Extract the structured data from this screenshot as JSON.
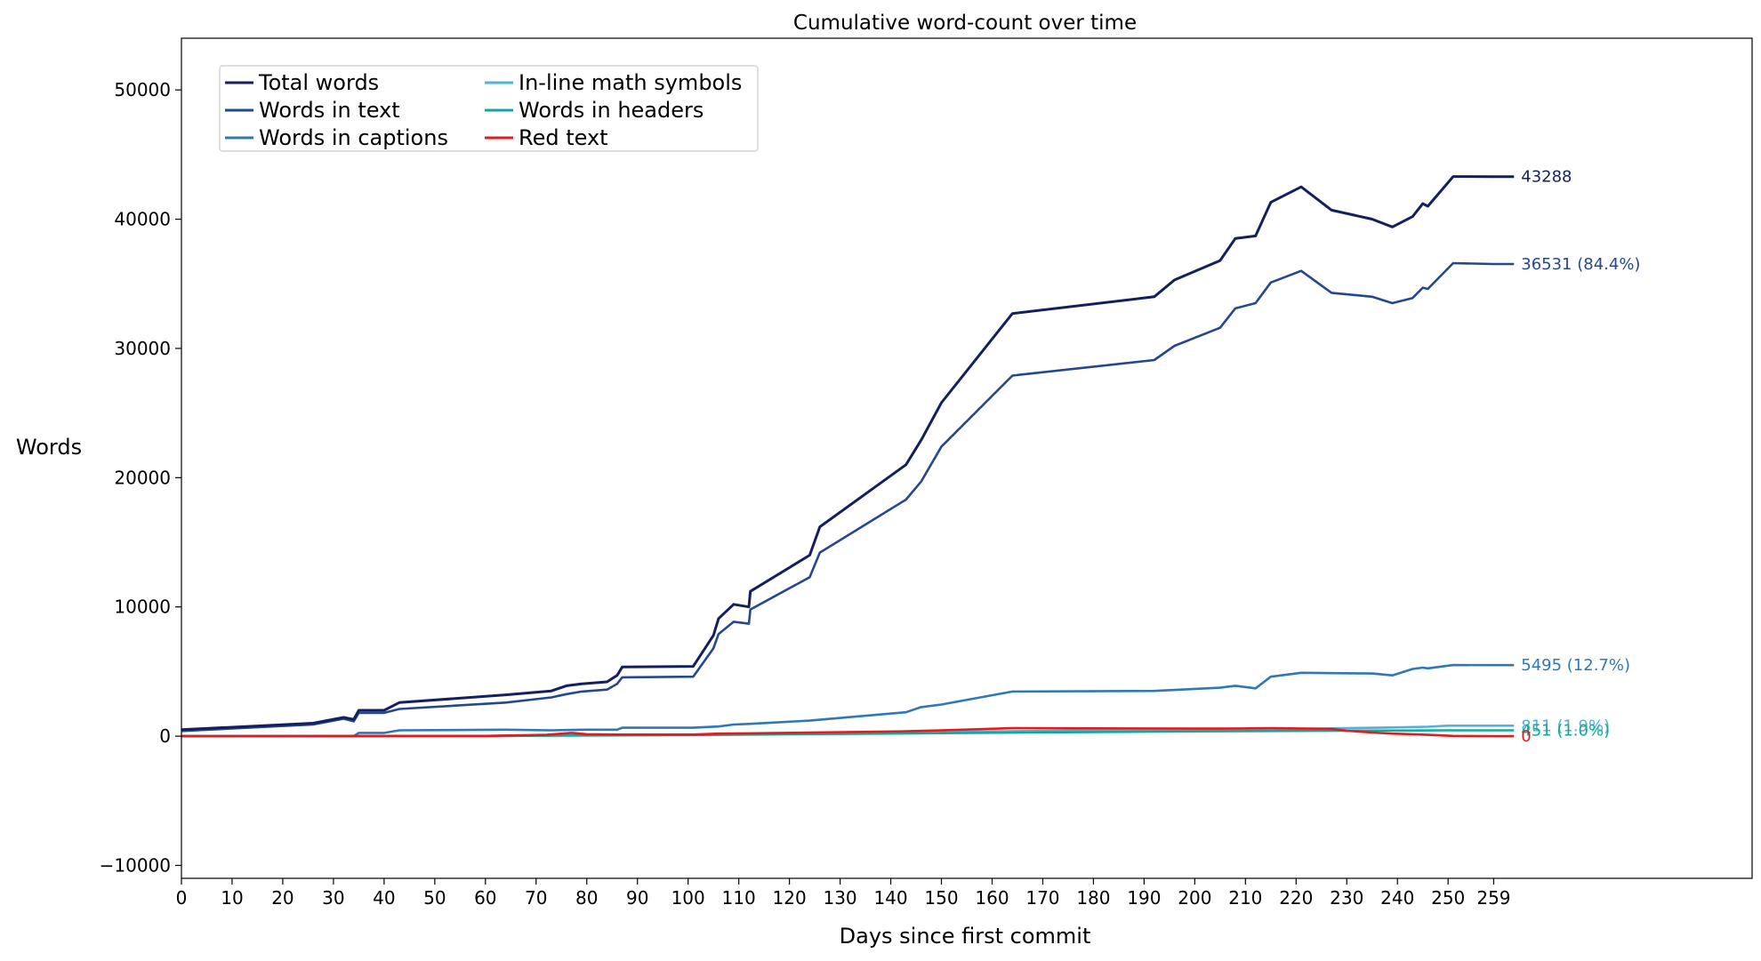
{
  "chart_data": {
    "type": "line",
    "title": "Cumulative word-count over time",
    "xlabel": "Days since first commit",
    "ylabel": "Words",
    "xlim": [
      0,
      310
    ],
    "ylim": [
      -11000,
      54000
    ],
    "xticks": [
      0,
      10,
      20,
      30,
      40,
      50,
      60,
      70,
      80,
      90,
      100,
      110,
      120,
      130,
      140,
      150,
      160,
      170,
      180,
      190,
      200,
      210,
      220,
      230,
      240,
      250,
      259
    ],
    "yticks": [
      -10000,
      0,
      10000,
      20000,
      30000,
      40000,
      50000
    ],
    "yticklabels": [
      "−10000",
      "0",
      "10000",
      "20000",
      "30000",
      "40000",
      "50000"
    ],
    "grid": false,
    "legend_position": "top-left",
    "legend_columns": 2,
    "series": [
      {
        "name": "Total words",
        "color": "#141f5e",
        "end_label": "43288",
        "x": [
          0,
          26,
          32,
          34,
          35,
          40,
          43,
          64,
          73,
          76,
          79,
          84,
          86,
          87,
          101,
          105,
          106,
          109,
          112,
          112.3,
          124,
          126,
          143,
          146,
          150,
          164,
          192,
          196,
          205,
          208,
          212,
          215,
          221,
          227,
          235,
          239,
          243,
          245,
          246,
          251,
          259,
          263
        ],
        "y": [
          500,
          1000,
          1450,
          1300,
          2000,
          2000,
          2600,
          3200,
          3500,
          3900,
          4050,
          4200,
          4700,
          5350,
          5400,
          7800,
          9100,
          10200,
          10000,
          11200,
          14000,
          16200,
          21000,
          22900,
          25800,
          32700,
          34000,
          35300,
          36800,
          38500,
          38700,
          41300,
          42500,
          40700,
          40000,
          39400,
          40200,
          41200,
          41000,
          43300,
          43288,
          43288
        ]
      },
      {
        "name": "Words in text",
        "color": "#25478e",
        "end_label": "36531 (84.4%)",
        "x": [
          0,
          26,
          32,
          34,
          35,
          40,
          43,
          64,
          73,
          76,
          79,
          84,
          86,
          87,
          101,
          105,
          106,
          109,
          112,
          112.3,
          124,
          126,
          143,
          146,
          150,
          164,
          192,
          196,
          205,
          208,
          212,
          215,
          221,
          227,
          235,
          239,
          243,
          245,
          246,
          251,
          259,
          263
        ],
        "y": [
          400,
          900,
          1350,
          1150,
          1800,
          1800,
          2100,
          2600,
          3000,
          3250,
          3450,
          3600,
          4050,
          4550,
          4600,
          6800,
          7900,
          8850,
          8700,
          9800,
          12300,
          14200,
          18300,
          19700,
          22400,
          27900,
          29100,
          30200,
          31600,
          33100,
          33500,
          35100,
          36000,
          34300,
          34000,
          33500,
          33900,
          34700,
          34600,
          36600,
          36531,
          36531
        ]
      },
      {
        "name": "Words in captions",
        "color": "#2d78b5",
        "end_label": "5495 (12.7%)",
        "x": [
          0,
          34,
          35,
          40,
          43,
          64,
          73,
          80,
          86,
          87,
          101,
          106,
          109,
          112,
          124,
          143,
          146,
          150,
          164,
          192,
          205,
          208,
          212,
          215,
          221,
          235,
          239,
          243,
          245,
          246,
          251,
          259,
          263
        ],
        "y": [
          0,
          0,
          250,
          250,
          450,
          500,
          450,
          500,
          500,
          650,
          650,
          750,
          900,
          950,
          1200,
          1850,
          2250,
          2450,
          3450,
          3500,
          3750,
          3900,
          3700,
          4600,
          4900,
          4850,
          4700,
          5200,
          5300,
          5250,
          5500,
          5495,
          5495
        ]
      },
      {
        "name": "In-line math symbols",
        "color": "#52b1d9",
        "end_label": "811 (1.9%)",
        "x": [
          0,
          60,
          100,
          150,
          200,
          220,
          230,
          240,
          246,
          250,
          259,
          263
        ],
        "y": [
          0,
          20,
          120,
          330,
          520,
          560,
          620,
          680,
          730,
          811,
          811,
          811
        ]
      },
      {
        "name": "Words in headers",
        "color": "#14a89c",
        "end_label": "451 (1.0%)",
        "x": [
          0,
          60,
          100,
          150,
          200,
          230,
          250,
          259,
          263
        ],
        "y": [
          0,
          15,
          80,
          230,
          370,
          420,
          451,
          451,
          451
        ]
      },
      {
        "name": "Red text",
        "color": "#e41a1c",
        "end_label": "0",
        "x": [
          0,
          60,
          72,
          77,
          80,
          86,
          101,
          106,
          112,
          124,
          143,
          150,
          164,
          205,
          215,
          227,
          230,
          235,
          239,
          243,
          246,
          251,
          259,
          263
        ],
        "y": [
          0,
          20,
          100,
          250,
          150,
          120,
          120,
          200,
          220,
          280,
          380,
          450,
          620,
          580,
          620,
          560,
          420,
          280,
          200,
          150,
          100,
          20,
          0,
          0
        ]
      }
    ]
  }
}
